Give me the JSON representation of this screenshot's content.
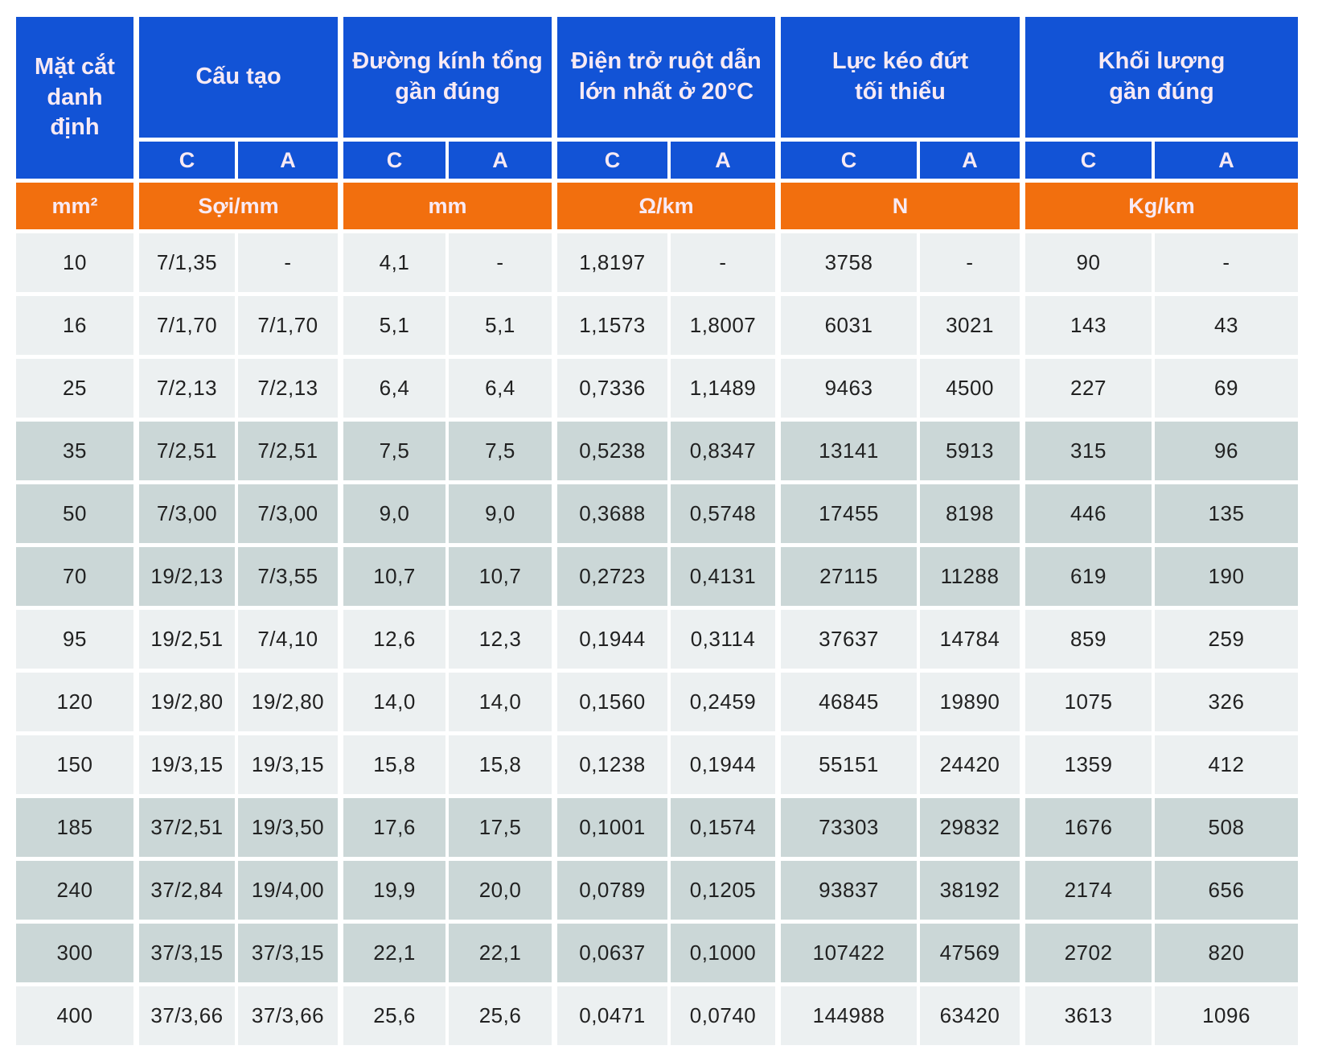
{
  "colors": {
    "header_blue": "#1253D6",
    "header_orange": "#F26F0E",
    "header_text": "#F8EAF4",
    "row_light": "#ECF0F1",
    "row_dark": "#CBD7D7",
    "text_dark": "#212121"
  },
  "table": {
    "corner": {
      "label": "Mặt cắt\ndanh\nđịnh",
      "unit": "mm²"
    },
    "groups": [
      {
        "label": "Cấu tạo",
        "unit": "Sợi/mm"
      },
      {
        "label": "Đường kính tổng\ngần đúng",
        "unit": "mm"
      },
      {
        "label": "Điện trở ruột dẫn\nlớn nhất ở 20°C",
        "unit": "Ω/km"
      },
      {
        "label": "Lực kéo đứt\ntối thiểu",
        "unit": "N"
      },
      {
        "label": "Khối lượng\ngần đúng",
        "unit": "Kg/km"
      }
    ],
    "subheaders": [
      "C",
      "A",
      "C",
      "A",
      "C",
      "A",
      "C",
      "A",
      "C",
      "A"
    ],
    "rows": [
      {
        "shade": "light",
        "cells": [
          "10",
          "7/1,35",
          "-",
          "4,1",
          "-",
          "1,8197",
          "-",
          "3758",
          "-",
          "90",
          "-"
        ]
      },
      {
        "shade": "light",
        "cells": [
          "16",
          "7/1,70",
          "7/1,70",
          "5,1",
          "5,1",
          "1,1573",
          "1,8007",
          "6031",
          "3021",
          "143",
          "43"
        ]
      },
      {
        "shade": "light",
        "cells": [
          "25",
          "7/2,13",
          "7/2,13",
          "6,4",
          "6,4",
          "0,7336",
          "1,1489",
          "9463",
          "4500",
          "227",
          "69"
        ]
      },
      {
        "shade": "dark",
        "cells": [
          "35",
          "7/2,51",
          "7/2,51",
          "7,5",
          "7,5",
          "0,5238",
          "0,8347",
          "13141",
          "5913",
          "315",
          "96"
        ]
      },
      {
        "shade": "dark",
        "cells": [
          "50",
          "7/3,00",
          "7/3,00",
          "9,0",
          "9,0",
          "0,3688",
          "0,5748",
          "17455",
          "8198",
          "446",
          "135"
        ]
      },
      {
        "shade": "dark",
        "cells": [
          "70",
          "19/2,13",
          "7/3,55",
          "10,7",
          "10,7",
          "0,2723",
          "0,4131",
          "27115",
          "11288",
          "619",
          "190"
        ]
      },
      {
        "shade": "light",
        "cells": [
          "95",
          "19/2,51",
          "7/4,10",
          "12,6",
          "12,3",
          "0,1944",
          "0,3114",
          "37637",
          "14784",
          "859",
          "259"
        ]
      },
      {
        "shade": "light",
        "cells": [
          "120",
          "19/2,80",
          "19/2,80",
          "14,0",
          "14,0",
          "0,1560",
          "0,2459",
          "46845",
          "19890",
          "1075",
          "326"
        ]
      },
      {
        "shade": "light",
        "cells": [
          "150",
          "19/3,15",
          "19/3,15",
          "15,8",
          "15,8",
          "0,1238",
          "0,1944",
          "55151",
          "24420",
          "1359",
          "412"
        ]
      },
      {
        "shade": "dark",
        "cells": [
          "185",
          "37/2,51",
          "19/3,50",
          "17,6",
          "17,5",
          "0,1001",
          "0,1574",
          "73303",
          "29832",
          "1676",
          "508"
        ]
      },
      {
        "shade": "dark",
        "cells": [
          "240",
          "37/2,84",
          "19/4,00",
          "19,9",
          "20,0",
          "0,0789",
          "0,1205",
          "93837",
          "38192",
          "2174",
          "656"
        ]
      },
      {
        "shade": "dark",
        "cells": [
          "300",
          "37/3,15",
          "37/3,15",
          "22,1",
          "22,1",
          "0,0637",
          "0,1000",
          "107422",
          "47569",
          "2702",
          "820"
        ]
      },
      {
        "shade": "light",
        "cells": [
          "400",
          "37/3,66",
          "37/3,66",
          "25,6",
          "25,6",
          "0,0471",
          "0,0740",
          "144988",
          "63420",
          "3613",
          "1096"
        ]
      }
    ]
  }
}
